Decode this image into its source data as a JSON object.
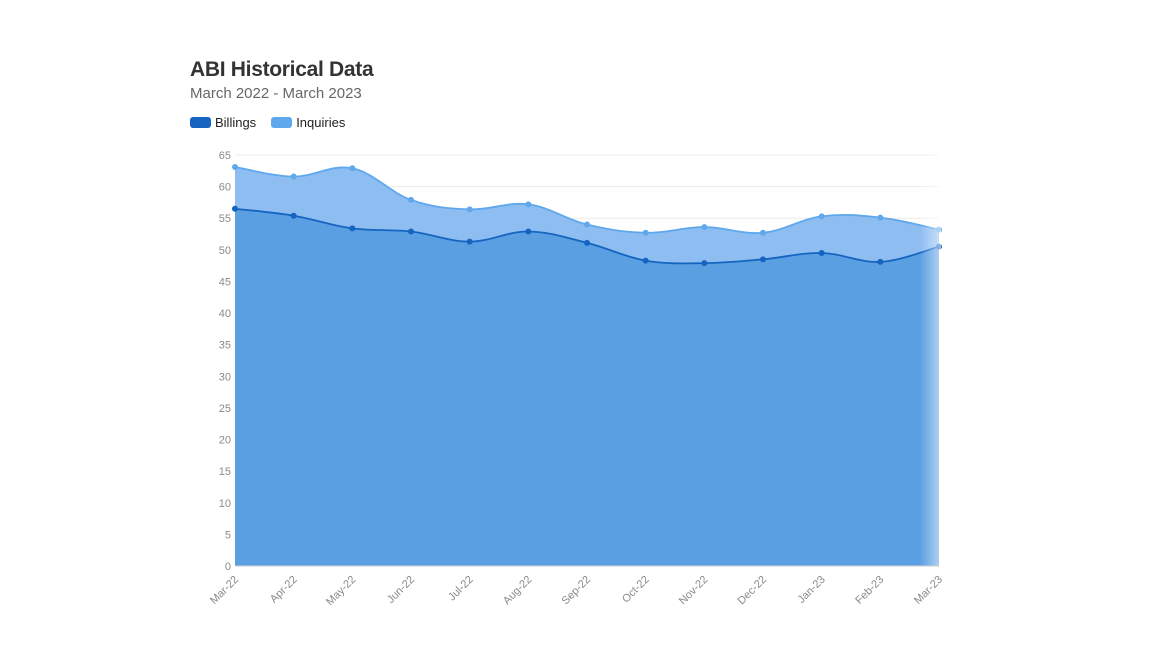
{
  "chart_data": {
    "type": "area",
    "title": "ABI Historical Data",
    "subtitle": "March 2022 - March 2023",
    "categories": [
      "Mar-22",
      "Apr-22",
      "May-22",
      "Jun-22",
      "Jul-22",
      "Aug-22",
      "Sep-22",
      "Oct-22",
      "Nov-22",
      "Dec-22",
      "Jan-23",
      "Feb-23",
      "Mar-23"
    ],
    "series": [
      {
        "name": "Billings",
        "color": "#1565c0",
        "values": [
          56.5,
          55.4,
          53.4,
          52.9,
          51.3,
          52.9,
          51.1,
          48.3,
          47.9,
          48.5,
          49.5,
          48.1,
          50.5
        ]
      },
      {
        "name": "Inquiries",
        "color": "#5fa8eb",
        "values": [
          63.1,
          61.6,
          62.9,
          57.9,
          56.4,
          57.2,
          54.0,
          52.7,
          53.6,
          52.7,
          55.3,
          55.1,
          53.2
        ]
      }
    ],
    "y_ticks": [
      0,
      5,
      10,
      15,
      20,
      25,
      30,
      35,
      40,
      45,
      50,
      55,
      60,
      65
    ],
    "ylim": [
      0,
      65
    ],
    "legend_position": "top-left",
    "grid": true
  }
}
